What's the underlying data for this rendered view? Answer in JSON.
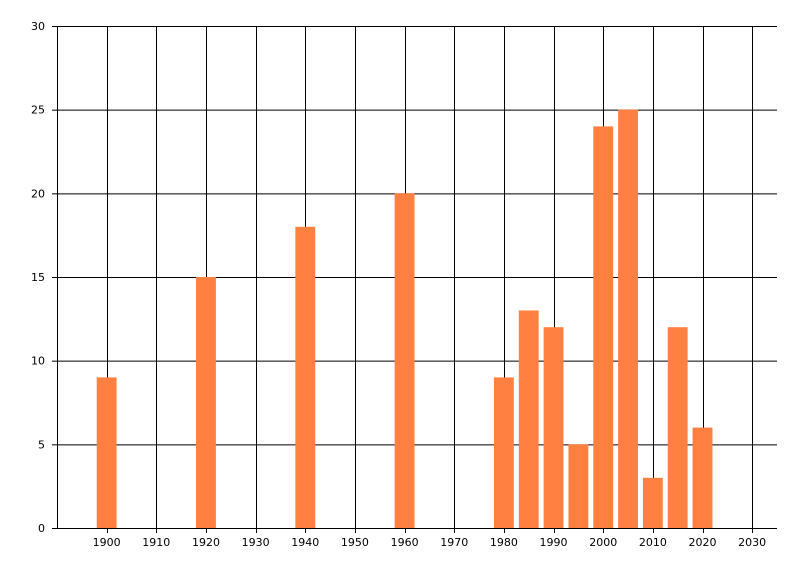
{
  "chart_data": {
    "type": "bar",
    "title": "",
    "xlabel": "",
    "ylabel": "",
    "x": [
      1900,
      1920,
      1940,
      1960,
      1980,
      1985,
      1990,
      1995,
      2000,
      2005,
      2010,
      2015,
      2020
    ],
    "values": [
      9,
      15,
      18,
      20,
      9,
      13,
      12,
      5,
      24,
      25,
      3,
      12,
      6
    ],
    "xlim": [
      1890,
      2035
    ],
    "ylim": [
      0,
      30
    ],
    "x_ticks": [
      1900,
      1910,
      1920,
      1930,
      1940,
      1950,
      1960,
      1970,
      1980,
      1990,
      2000,
      2010,
      2020,
      2030
    ],
    "y_ticks": [
      0,
      5,
      10,
      15,
      20,
      25,
      30
    ],
    "grid": true,
    "bar_width_years": 4,
    "bar_color": "#FF8040",
    "grid_color": "#000000"
  }
}
